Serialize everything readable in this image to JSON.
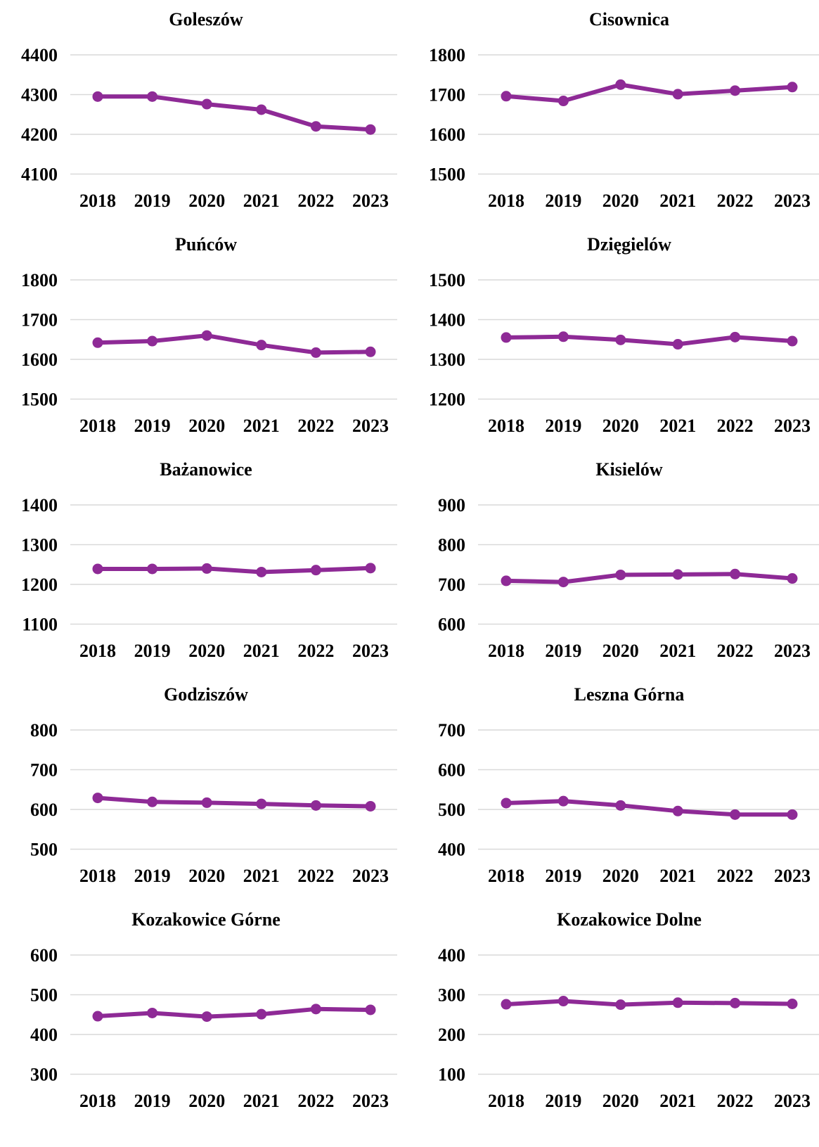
{
  "chart_data": [
    {
      "type": "line",
      "title": "Goleszów",
      "categories": [
        "2018",
        "2019",
        "2020",
        "2021",
        "2022",
        "2023"
      ],
      "series": [
        {
          "values": [
            4295,
            4295,
            4276,
            4262,
            4220,
            4212
          ]
        }
      ],
      "ylim": [
        4100,
        4400
      ],
      "yticks": [
        4100,
        4200,
        4300,
        4400
      ],
      "grid": true,
      "color": "#8e2a96"
    },
    {
      "type": "line",
      "title": "Cisownica",
      "categories": [
        "2018",
        "2019",
        "2020",
        "2021",
        "2022",
        "2023"
      ],
      "series": [
        {
          "values": [
            1696,
            1684,
            1725,
            1701,
            1710,
            1719
          ]
        }
      ],
      "ylim": [
        1500,
        1800
      ],
      "yticks": [
        1500,
        1600,
        1700,
        1800
      ],
      "grid": true,
      "color": "#8e2a96"
    },
    {
      "type": "line",
      "title": "Puńców",
      "categories": [
        "2018",
        "2019",
        "2020",
        "2021",
        "2022",
        "2023"
      ],
      "series": [
        {
          "values": [
            1642,
            1646,
            1660,
            1636,
            1617,
            1619
          ]
        }
      ],
      "ylim": [
        1500,
        1800
      ],
      "yticks": [
        1500,
        1600,
        1700,
        1800
      ],
      "grid": true,
      "color": "#8e2a96"
    },
    {
      "type": "line",
      "title": "Dzięgielów",
      "categories": [
        "2018",
        "2019",
        "2020",
        "2021",
        "2022",
        "2023"
      ],
      "series": [
        {
          "values": [
            1355,
            1357,
            1349,
            1338,
            1356,
            1346
          ]
        }
      ],
      "ylim": [
        1200,
        1500
      ],
      "yticks": [
        1200,
        1300,
        1400,
        1500
      ],
      "grid": true,
      "color": "#8e2a96"
    },
    {
      "type": "line",
      "title": "Bażanowice",
      "categories": [
        "2018",
        "2019",
        "2020",
        "2021",
        "2022",
        "2023"
      ],
      "series": [
        {
          "values": [
            1239,
            1239,
            1240,
            1231,
            1236,
            1241
          ]
        }
      ],
      "ylim": [
        1100,
        1400
      ],
      "yticks": [
        1100,
        1200,
        1300,
        1400
      ],
      "grid": true,
      "color": "#8e2a96"
    },
    {
      "type": "line",
      "title": "Kisielów",
      "categories": [
        "2018",
        "2019",
        "2020",
        "2021",
        "2022",
        "2023"
      ],
      "series": [
        {
          "values": [
            709,
            706,
            724,
            725,
            726,
            715
          ]
        }
      ],
      "ylim": [
        600,
        900
      ],
      "yticks": [
        600,
        700,
        800,
        900
      ],
      "grid": true,
      "color": "#8e2a96"
    },
    {
      "type": "line",
      "title": "Godziszów",
      "categories": [
        "2018",
        "2019",
        "2020",
        "2021",
        "2022",
        "2023"
      ],
      "series": [
        {
          "values": [
            629,
            619,
            617,
            614,
            610,
            608
          ]
        }
      ],
      "ylim": [
        500,
        800
      ],
      "yticks": [
        500,
        600,
        700,
        800
      ],
      "grid": true,
      "color": "#8e2a96"
    },
    {
      "type": "line",
      "title": "Leszna Górna",
      "categories": [
        "2018",
        "2019",
        "2020",
        "2021",
        "2022",
        "2023"
      ],
      "series": [
        {
          "values": [
            516,
            521,
            510,
            496,
            487,
            487
          ]
        }
      ],
      "ylim": [
        400,
        700
      ],
      "yticks": [
        400,
        500,
        600,
        700
      ],
      "grid": true,
      "color": "#8e2a96"
    },
    {
      "type": "line",
      "title": "Kozakowice Górne",
      "categories": [
        "2018",
        "2019",
        "2020",
        "2021",
        "2022",
        "2023"
      ],
      "series": [
        {
          "values": [
            446,
            454,
            445,
            451,
            464,
            462
          ]
        }
      ],
      "ylim": [
        300,
        600
      ],
      "yticks": [
        300,
        400,
        500,
        600
      ],
      "grid": true,
      "color": "#8e2a96"
    },
    {
      "type": "line",
      "title": "Kozakowice Dolne",
      "categories": [
        "2018",
        "2019",
        "2020",
        "2021",
        "2022",
        "2023"
      ],
      "series": [
        {
          "values": [
            276,
            284,
            275,
            280,
            279,
            277
          ]
        }
      ],
      "ylim": [
        100,
        400
      ],
      "yticks": [
        100,
        200,
        300,
        400
      ],
      "grid": true,
      "color": "#8e2a96"
    }
  ]
}
